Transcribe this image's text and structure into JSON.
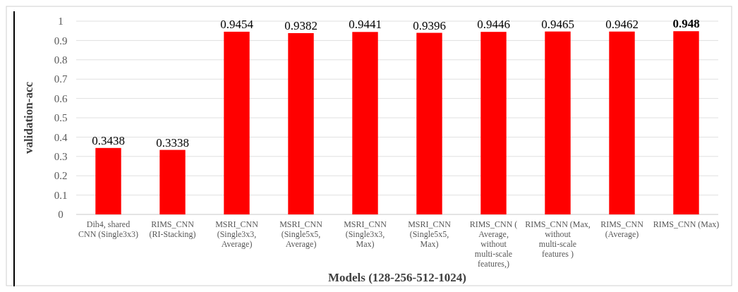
{
  "chart_data": {
    "type": "bar",
    "xlabel": "Models (128-256-512-1024)",
    "ylabel": "validation-acc",
    "categories": [
      "Dih4, shared CNN (Single3x3)",
      "RIMS_CNN (RI-Stacking)",
      "MSRI_CNN (Single3x3, Average)",
      "MSRI_CNN (Single5x5, Average)",
      "MSRI_CNN (Single3x3, Max)",
      "MSRI_CNN (Single5x5, Max)",
      "RIMS_CNN ( Average, without multi-scale features,)",
      "RIMS_CNN (Max, without multi-scale features )",
      "RIMS_CNN (Average)",
      "RIMS_CNN (Max)"
    ],
    "values": [
      0.3438,
      0.3338,
      0.9454,
      0.9382,
      0.9441,
      0.9396,
      0.9446,
      0.9465,
      0.9462,
      0.948
    ],
    "color": "#ff0000",
    "ylim": [
      0,
      1
    ],
    "yticks": [
      0,
      0.1,
      0.2,
      0.3,
      0.4,
      0.5,
      0.6,
      0.7,
      0.8,
      0.9,
      1
    ],
    "grid": "y",
    "data_labels": true
  }
}
